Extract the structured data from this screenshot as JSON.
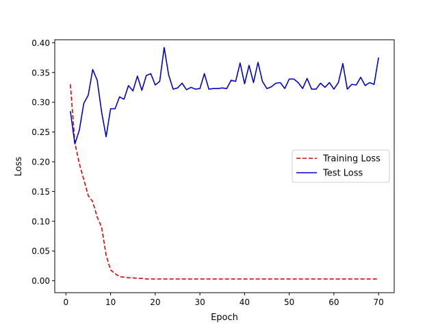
{
  "chart_data": {
    "type": "line",
    "title": "",
    "xlabel": "Epoch",
    "ylabel": "Loss",
    "xlim": [
      -2.5,
      73.5
    ],
    "ylim": [
      -0.02,
      0.405
    ],
    "xticks": [
      0,
      10,
      20,
      30,
      40,
      50,
      60,
      70
    ],
    "yticks": [
      0.0,
      0.05,
      0.1,
      0.15,
      0.2,
      0.25,
      0.3,
      0.35,
      0.4
    ],
    "xtick_labels": [
      "0",
      "10",
      "20",
      "30",
      "40",
      "50",
      "60",
      "70"
    ],
    "ytick_labels": [
      "0.00",
      "0.05",
      "0.10",
      "0.15",
      "0.20",
      "0.25",
      "0.30",
      "0.35",
      "0.40"
    ],
    "grid": false,
    "legend_position": "center-right",
    "x": [
      1,
      2,
      3,
      4,
      5,
      6,
      7,
      8,
      9,
      10,
      11,
      12,
      13,
      14,
      15,
      16,
      17,
      18,
      19,
      20,
      21,
      22,
      23,
      24,
      25,
      26,
      27,
      28,
      29,
      30,
      31,
      32,
      33,
      34,
      35,
      36,
      37,
      38,
      39,
      40,
      41,
      42,
      43,
      44,
      45,
      46,
      47,
      48,
      49,
      50,
      51,
      52,
      53,
      54,
      55,
      56,
      57,
      58,
      59,
      60,
      61,
      62,
      63,
      64,
      65,
      66,
      67,
      68,
      69,
      70
    ],
    "series": [
      {
        "name": "Training Loss",
        "color": "#dd0000",
        "linestyle": "dashed",
        "values": [
          0.33,
          0.232,
          0.197,
          0.17,
          0.143,
          0.133,
          0.107,
          0.09,
          0.043,
          0.018,
          0.012,
          0.007,
          0.006,
          0.005,
          0.005,
          0.004,
          0.004,
          0.003,
          0.003,
          0.003,
          0.003,
          0.003,
          0.003,
          0.003,
          0.003,
          0.003,
          0.003,
          0.003,
          0.003,
          0.003,
          0.003,
          0.003,
          0.003,
          0.003,
          0.003,
          0.003,
          0.003,
          0.003,
          0.003,
          0.003,
          0.003,
          0.003,
          0.003,
          0.003,
          0.003,
          0.003,
          0.003,
          0.003,
          0.003,
          0.003,
          0.003,
          0.003,
          0.003,
          0.003,
          0.003,
          0.003,
          0.003,
          0.003,
          0.003,
          0.003,
          0.003,
          0.003,
          0.003,
          0.003,
          0.003,
          0.003,
          0.003,
          0.003,
          0.003,
          0.003
        ]
      },
      {
        "name": "Test Loss",
        "color": "#0000cc",
        "linestyle": "solid",
        "values": [
          0.285,
          0.23,
          0.253,
          0.298,
          0.312,
          0.355,
          0.337,
          0.283,
          0.242,
          0.289,
          0.289,
          0.309,
          0.305,
          0.328,
          0.319,
          0.344,
          0.32,
          0.345,
          0.348,
          0.329,
          0.335,
          0.392,
          0.346,
          0.322,
          0.324,
          0.332,
          0.321,
          0.325,
          0.322,
          0.323,
          0.348,
          0.322,
          0.323,
          0.323,
          0.324,
          0.323,
          0.337,
          0.335,
          0.366,
          0.331,
          0.362,
          0.333,
          0.367,
          0.335,
          0.323,
          0.326,
          0.332,
          0.333,
          0.323,
          0.339,
          0.339,
          0.333,
          0.323,
          0.34,
          0.322,
          0.322,
          0.332,
          0.325,
          0.333,
          0.322,
          0.333,
          0.365,
          0.322,
          0.33,
          0.329,
          0.342,
          0.328,
          0.333,
          0.33,
          0.375
        ]
      }
    ]
  }
}
